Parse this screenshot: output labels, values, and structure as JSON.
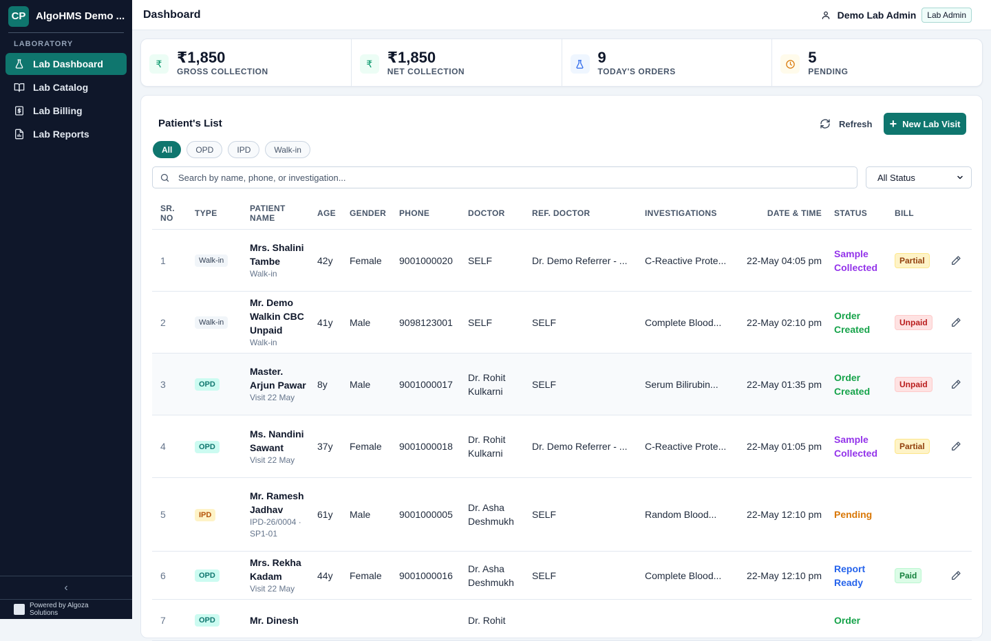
{
  "brand": {
    "initials": "CP",
    "name": "AlgoHMS Demo ..."
  },
  "sidebar": {
    "section": "LABORATORY",
    "items": [
      {
        "label": "Lab Dashboard"
      },
      {
        "label": "Lab Catalog"
      },
      {
        "label": "Lab Billing"
      },
      {
        "label": "Lab Reports"
      }
    ],
    "collapse": "‹",
    "powered": "Powered by Algoza Solutions"
  },
  "header": {
    "title": "Dashboard",
    "user": "Demo Lab Admin",
    "role": "Lab Admin"
  },
  "stats": [
    {
      "icon": "₹",
      "value": "₹1,850",
      "label": "GROSS COLLECTION"
    },
    {
      "icon": "₹",
      "value": "₹1,850",
      "label": "NET COLLECTION"
    },
    {
      "icon": "flask-icon",
      "value": "9",
      "label": "TODAY'S ORDERS"
    },
    {
      "icon": "clock-icon",
      "value": "5",
      "label": "PENDING"
    }
  ],
  "panel": {
    "title": "Patient's List",
    "refresh": "Refresh",
    "new_visit": "New Lab Visit",
    "filters": [
      "All",
      "OPD",
      "IPD",
      "Walk-in"
    ],
    "search_placeholder": "Search by name, phone, or investigation...",
    "status_select": "All Status"
  },
  "table": {
    "headers": {
      "sr": "SR. NO",
      "type": "TYPE",
      "name": "PATIENT NAME",
      "age": "AGE",
      "gender": "GENDER",
      "phone": "PHONE",
      "doctor": "DOCTOR",
      "ref": "REF. DOCTOR",
      "inv": "INVESTIGATIONS",
      "date": "DATE & TIME",
      "status": "STATUS",
      "bill": "BILL"
    },
    "rows": [
      {
        "sr": "1",
        "type": "Walk-in",
        "name": "Mrs. Shalini Tambe",
        "sub": "Walk-in",
        "age": "42y",
        "gender": "Female",
        "phone": "9001000020",
        "doctor": "SELF",
        "ref": "Dr. Demo Referrer - ...",
        "inv": "C-Reactive Prote...",
        "date": "22-May 04:05 pm",
        "status": "Sample Collected",
        "bill": "Partial"
      },
      {
        "sr": "2",
        "type": "Walk-in",
        "name": "Mr. Demo Walkin CBC Unpaid",
        "sub": "Walk-in",
        "age": "41y",
        "gender": "Male",
        "phone": "9098123001",
        "doctor": "SELF",
        "ref": "SELF",
        "inv": "Complete Blood...",
        "date": "22-May 02:10 pm",
        "status": "Order Created",
        "bill": "Unpaid"
      },
      {
        "sr": "3",
        "type": "OPD",
        "name": "Master. Arjun Pawar",
        "sub": "Visit 22 May",
        "age": "8y",
        "gender": "Male",
        "phone": "9001000017",
        "doctor": "Dr. Rohit Kulkarni",
        "ref": "SELF",
        "inv": "Serum Bilirubin...",
        "date": "22-May 01:35 pm",
        "status": "Order Created",
        "bill": "Unpaid"
      },
      {
        "sr": "4",
        "type": "OPD",
        "name": "Ms. Nandini Sawant",
        "sub": "Visit 22 May",
        "age": "37y",
        "gender": "Female",
        "phone": "9001000018",
        "doctor": "Dr. Rohit Kulkarni",
        "ref": "Dr. Demo Referrer - ...",
        "inv": "C-Reactive Prote...",
        "date": "22-May 01:05 pm",
        "status": "Sample Collected",
        "bill": "Partial"
      },
      {
        "sr": "5",
        "type": "IPD",
        "name": "Mr. Ramesh Jadhav",
        "sub": "IPD-26/0004 · SP1-01",
        "age": "61y",
        "gender": "Male",
        "phone": "9001000005",
        "doctor": "Dr. Asha Deshmukh",
        "ref": "SELF",
        "inv": "Random Blood...",
        "date": "22-May 12:10 pm",
        "status": "Pending",
        "bill": ""
      },
      {
        "sr": "6",
        "type": "OPD",
        "name": "Mrs. Rekha Kadam",
        "sub": "Visit 22 May",
        "age": "44y",
        "gender": "Female",
        "phone": "9001000016",
        "doctor": "Dr. Asha Deshmukh",
        "ref": "SELF",
        "inv": "Complete Blood...",
        "date": "22-May 12:10 pm",
        "status": "Report Ready",
        "bill": "Paid"
      },
      {
        "sr": "7",
        "type": "OPD",
        "name": "Mr. Dinesh",
        "sub": "",
        "age": "",
        "gender": "",
        "phone": "",
        "doctor": "Dr. Rohit",
        "ref": "",
        "inv": "",
        "date": "",
        "status": "Order",
        "bill": ""
      }
    ]
  },
  "colors": {
    "accent": "#0f766e",
    "sidebar": "#0f172a",
    "status_sample_collected": "#9333ea",
    "status_order_created": "#16a34a",
    "status_pending": "#d97706",
    "status_report_ready": "#2563eb"
  }
}
